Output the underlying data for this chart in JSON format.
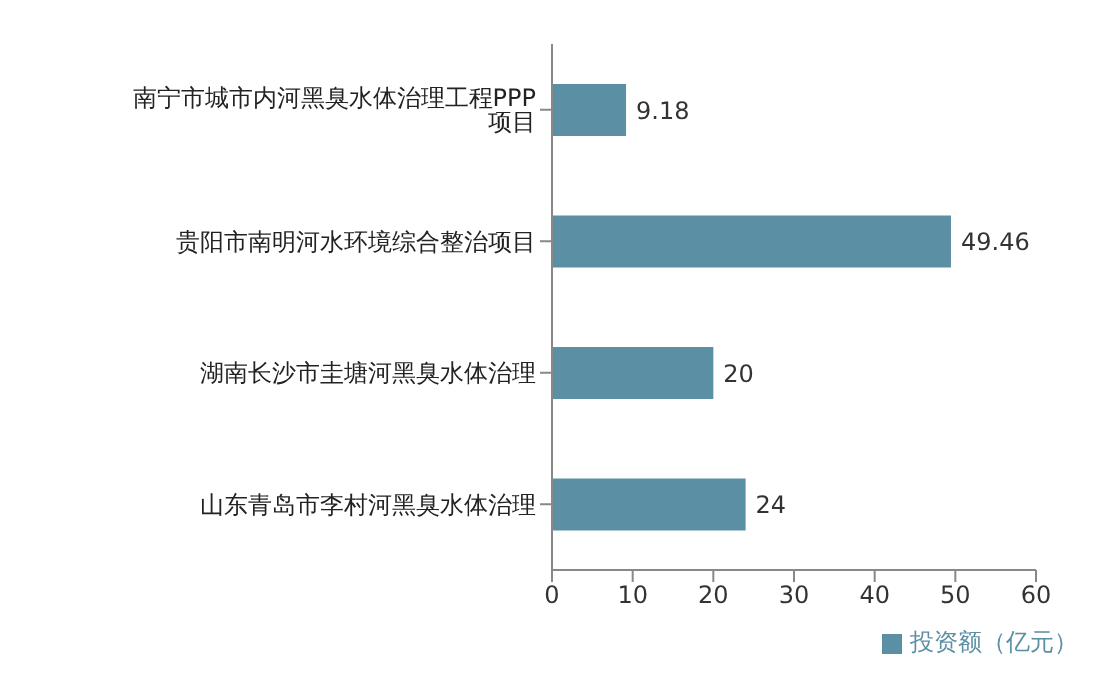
{
  "chart_data": {
    "type": "bar",
    "orientation": "horizontal",
    "categories": [
      "南宁市城市内河黑臭水体治理工程PPP  项目",
      "贵阳市南明河水环境综合整治项目",
      "湖南长沙市圭塘河黑臭水体治理",
      "山东青岛市李村河黑臭水体治理"
    ],
    "series": [
      {
        "name": "投资额（亿元）",
        "color": "#5b8fa3",
        "values": [
          9.18,
          49.46,
          20,
          24
        ]
      }
    ],
    "xlim": [
      0,
      60
    ],
    "xticks": [
      0,
      10,
      20,
      30,
      40,
      50,
      60
    ],
    "data_labels": true,
    "grid": false,
    "legend": "bottom"
  }
}
